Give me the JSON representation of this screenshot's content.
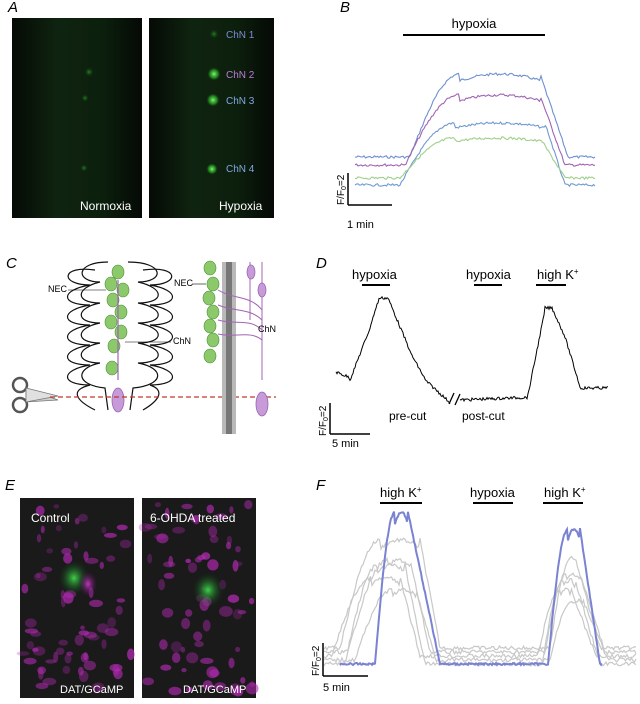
{
  "panels": {
    "A": {
      "letter": "A",
      "left_caption": "Normoxia",
      "right_caption": "Hypoxia",
      "cell_labels": [
        "ChN 1",
        "ChN 2",
        "ChN 3",
        "ChN 4"
      ]
    },
    "B": {
      "letter": "B",
      "bar_label": "hypoxia",
      "scale_y": "F/F",
      "scale_y_sub": "0",
      "scale_y_val": "=2",
      "scale_x": "1 min"
    },
    "C": {
      "letter": "C",
      "nec_left": "NEC",
      "chn_left": "ChN",
      "nec_right": "NEC",
      "chn_right": "ChN"
    },
    "D": {
      "letter": "D",
      "labels": [
        "hypoxia",
        "hypoxia",
        "high K"
      ],
      "superscript": "+",
      "pre_cut": "pre-cut",
      "post_cut": "post-cut",
      "scale_y": "F/F",
      "scale_y_sub": "0",
      "scale_y_val": "=2",
      "scale_x": "5 min"
    },
    "E": {
      "letter": "E",
      "left_title": "Control",
      "right_title": "6-OHDA treated",
      "left_caption": "DAT/GCaMP",
      "right_caption": "DAT/GCaMP"
    },
    "F": {
      "letter": "F",
      "labels": [
        "high K",
        "hypoxia",
        "high K"
      ],
      "superscript": "+",
      "scale_y": "F/F",
      "scale_y_sub": "0",
      "scale_y_val": "=2",
      "scale_x": "5 min"
    }
  },
  "colors": {
    "purple": "#a064b4",
    "blue": "#6f8fd0",
    "green": "#9ed08a",
    "violet_trace": "#7a82d2",
    "gray_trace": "#c8c8c8",
    "nec_green": "#8bc96a",
    "chn_purple": "#c79ad8",
    "cut_line": "#c0392b"
  }
}
